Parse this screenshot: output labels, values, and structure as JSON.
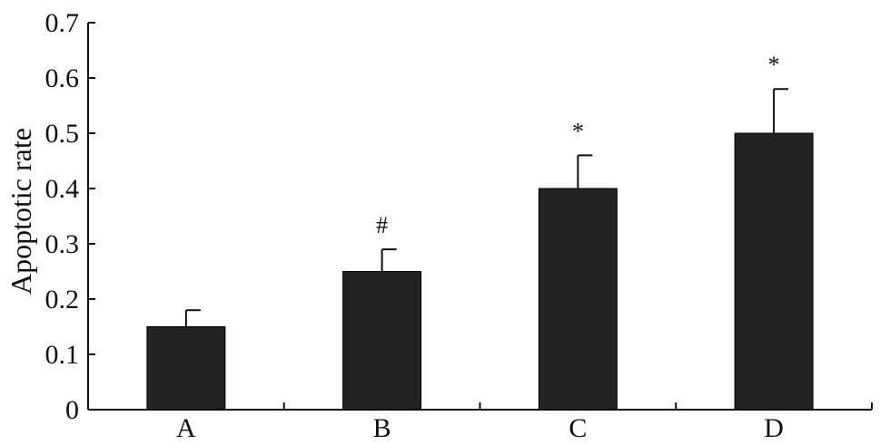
{
  "chart_data": {
    "type": "bar",
    "title": "",
    "xlabel": "",
    "ylabel": "Apoptotic rate",
    "categories": [
      "A",
      "B",
      "C",
      "D"
    ],
    "values": [
      0.15,
      0.25,
      0.4,
      0.5
    ],
    "error_upper": [
      0.03,
      0.04,
      0.06,
      0.08
    ],
    "annotations": [
      "",
      "#",
      "*",
      "*"
    ],
    "ylim": [
      0,
      0.7
    ],
    "yticks": [
      "0",
      "0.1",
      "0.2",
      "0.3",
      "0.4",
      "0.5",
      "0.6",
      "0.7"
    ],
    "grid": false,
    "bar_color": "#222222"
  }
}
